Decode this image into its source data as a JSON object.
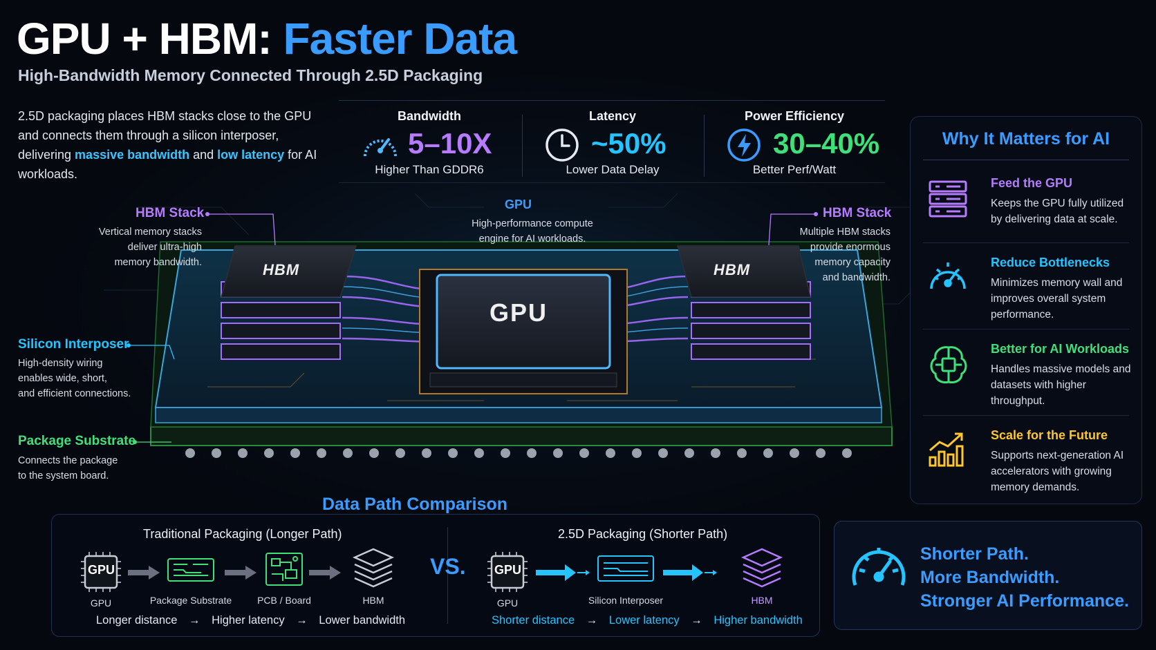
{
  "header": {
    "title_white": "GPU + HBM:",
    "title_blue": "Faster Data",
    "subtitle": "High-Bandwidth Memory Connected Through 2.5D Packaging"
  },
  "intro": {
    "part1": "2.5D packaging places HBM stacks close to the GPU and connects them through a silicon interposer, delivering ",
    "hl1": "massive bandwidth",
    "and": " and ",
    "hl2": "low latency",
    "part2": " for AI workloads."
  },
  "stats": [
    {
      "label": "Bandwidth",
      "value": "5–10X",
      "caption": "Higher Than GDDR6",
      "color": "#b77bff",
      "icon": "speedometer-icon"
    },
    {
      "label": "Latency",
      "value": "~50%",
      "caption": "Lower Data Delay",
      "color": "#26c4ff",
      "icon": "clock-icon"
    },
    {
      "label": "Power Efficiency",
      "value": "30–40%",
      "caption": "Better Perf/Watt",
      "color": "#3fe07a",
      "icon": "lightning-icon"
    }
  ],
  "chip_labels": {
    "hbm_left": {
      "title": "HBM Stack",
      "text": [
        "Vertical memory stacks",
        "deliver ultra-high",
        "memory bandwidth."
      ]
    },
    "gpu": {
      "title": "GPU",
      "text": [
        "High-performance compute",
        "engine for AI workloads."
      ]
    },
    "hbm_right": {
      "title": "HBM Stack",
      "text": [
        "Multiple HBM stacks",
        "provide enormous",
        "memory capacity",
        "and bandwidth."
      ]
    },
    "interposer": {
      "title": "Silicon Interposer",
      "text": [
        "High-density wiring",
        "enables wide, short,",
        "and efficient connections."
      ]
    },
    "substrate": {
      "title": "Package Substrate",
      "text": [
        "Connects the package",
        "to the system board."
      ]
    },
    "hbm_chip_text": "HBM",
    "gpu_chip_text": "GPU"
  },
  "why": {
    "title": "Why It Matters for AI",
    "items": [
      {
        "title": "Feed the GPU",
        "desc": "Keeps the GPU fully utilized by delivering data at scale.",
        "color": "#b77bff",
        "icon": "memory-stack-icon"
      },
      {
        "title": "Reduce Bottlenecks",
        "desc": "Minimizes memory wall and improves overall system performance.",
        "color": "#26c4ff",
        "icon": "gauge-icon"
      },
      {
        "title": "Better for AI Workloads",
        "desc": "Handles massive models and datasets with higher throughput.",
        "color": "#3fe07a",
        "icon": "brain-chip-icon"
      },
      {
        "title": "Scale for the Future",
        "desc": "Supports next-generation AI accelerators with growing memory demands.",
        "color": "#ffc62e",
        "icon": "growth-chart-icon"
      }
    ]
  },
  "data_path": {
    "title": "Data Path Comparison",
    "traditional": {
      "heading": "Traditional Packaging (Longer Path)",
      "nodes": [
        "GPU",
        "Package Substrate",
        "PCB / Board",
        "HBM"
      ],
      "footer": [
        "Longer distance",
        "Higher latency",
        "Lower bandwidth"
      ]
    },
    "vs": "VS.",
    "advanced": {
      "heading": "2.5D Packaging (Shorter Path)",
      "nodes": [
        "GPU",
        "Silicon Interposer",
        "HBM"
      ],
      "footer": [
        "Shorter distance",
        "Lower latency",
        "Higher bandwidth"
      ]
    },
    "chip_icon_text": "GPU",
    "arrow": "→"
  },
  "cta": {
    "lines": [
      "Shorter Path.",
      "More Bandwidth.",
      "Stronger AI Performance."
    ]
  }
}
